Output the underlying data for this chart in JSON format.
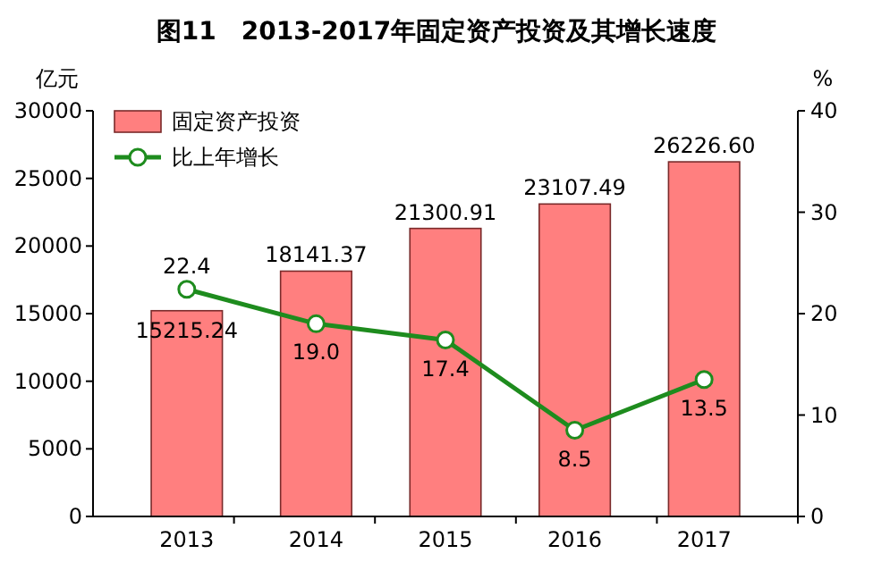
{
  "chart_data": {
    "type": "bar",
    "title": "图11　2013-2017年固定资产投资及其增长速度",
    "ylabel": "亿元",
    "y2label": "%",
    "categories": [
      "2013",
      "2014",
      "2015",
      "2016",
      "2017"
    ],
    "series": [
      {
        "name": "固定资产投资",
        "color": "#ff7f7f",
        "values": [
          15215.24,
          18141.37,
          21300.91,
          23107.49,
          26226.6
        ],
        "value_labels": [
          "15215.24",
          "18141.37",
          "21300.91",
          "23107.49",
          "26226.60"
        ]
      },
      {
        "name": "比上年增长",
        "type": "line",
        "axis": "y2",
        "color": "#1e8c1e",
        "marker": "circle",
        "values": [
          22.4,
          19.0,
          17.4,
          8.5,
          13.5
        ],
        "value_labels": [
          "22.4",
          "19.0",
          "17.4",
          "8.5",
          "13.5"
        ]
      }
    ],
    "ylim": [
      0,
      30000
    ],
    "yticks": [
      0,
      5000,
      10000,
      15000,
      20000,
      25000,
      30000
    ],
    "y2lim": [
      0,
      40
    ],
    "y2ticks": [
      0,
      10,
      20,
      30,
      40
    ],
    "data_labels": true,
    "legend": "top left",
    "grid": false
  }
}
